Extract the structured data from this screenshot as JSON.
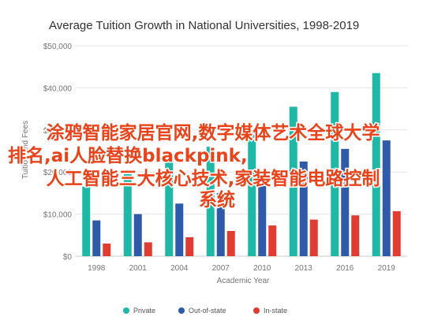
{
  "colors": {
    "private": "#1fb7a6",
    "out_of_state": "#2e5aa8",
    "in_state": "#e03c31",
    "grid": "#e6e6e6",
    "overlay": "#e8431a"
  },
  "chart_data": {
    "type": "bar",
    "title": "Average Tuition Growth in National Universities, 1998-2019",
    "xlabel": "Academic Year",
    "ylabel": "Tuition and Fees",
    "ylim": [
      0,
      50000
    ],
    "yticks": [
      0,
      10000,
      20000,
      30000,
      40000,
      50000
    ],
    "ytick_labels": [
      "$0",
      "$10,000",
      "$20,000",
      "$30,000",
      "$40,000",
      "$50,000"
    ],
    "categories": [
      "1998",
      "2001",
      "2004",
      "2007",
      "2010",
      "2013",
      "2016",
      "2019"
    ],
    "series": [
      {
        "name": "Private",
        "color_key": "private",
        "values": [
          16500,
          19500,
          22500,
          26000,
          30000,
          35500,
          39000,
          43500
        ]
      },
      {
        "name": "Out-of-state",
        "color_key": "out_of_state",
        "values": [
          8500,
          10000,
          12500,
          15000,
          18000,
          22500,
          25500,
          27500
        ]
      },
      {
        "name": "In-state",
        "color_key": "in_state",
        "values": [
          3000,
          3300,
          4500,
          6000,
          7300,
          8700,
          9700,
          10700
        ]
      }
    ],
    "grid": true,
    "legend": "bottom"
  },
  "overlay": {
    "lines": [
      "涂鸦智能家居官网,数字媒体艺术全球大学",
      "排名,ai人脸替换blackpink,",
      "人工智能三大核心技术,家装智能电路控制",
      "系统"
    ]
  }
}
